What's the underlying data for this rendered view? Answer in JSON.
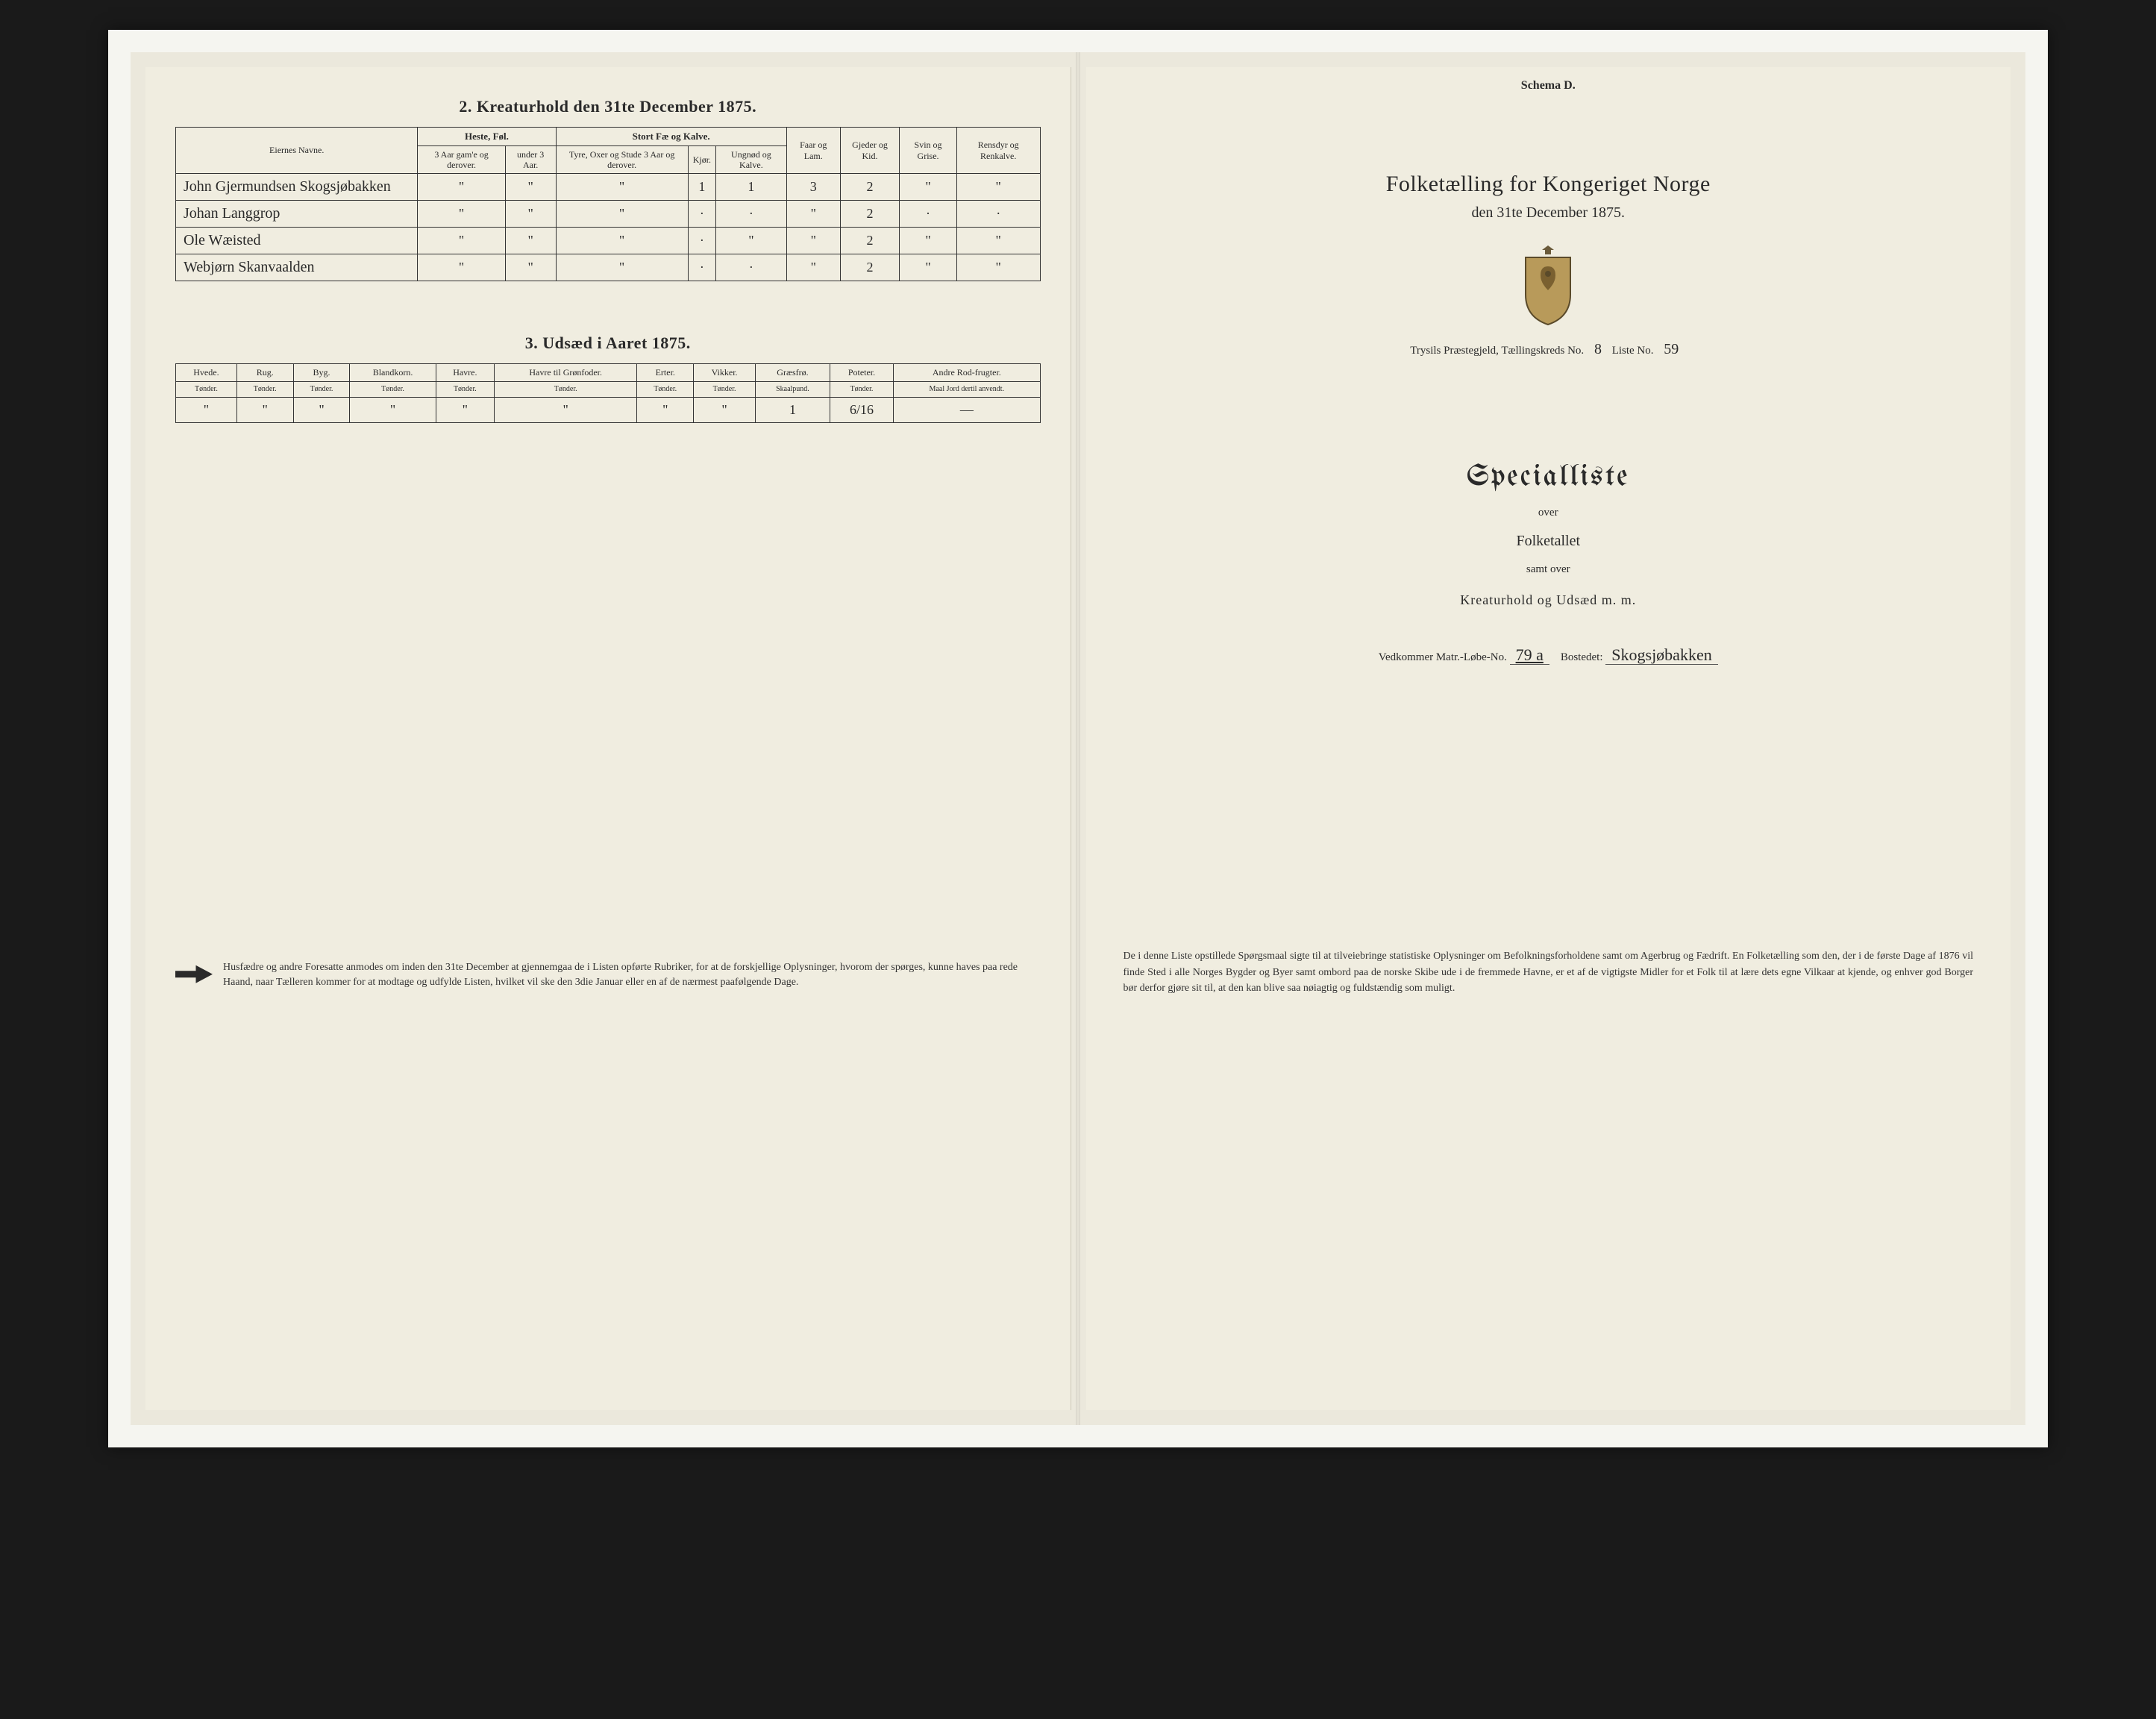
{
  "left": {
    "section2_title": "2. Kreaturhold den 31te December 1875.",
    "section3_title": "3. Udsæd i Aaret 1875.",
    "table2": {
      "head": {
        "names": "Eiernes Navne.",
        "g_horse": "Heste, Føl.",
        "g_cattle": "Stort Fæ og Kalve.",
        "g_sheep": "Faar og Lam.",
        "g_goat": "Gjeder og Kid.",
        "g_pig": "Svin og Grise.",
        "g_rein": "Rensdyr og Renkalve.",
        "h_horse1": "3 Aar gam'e og derover.",
        "h_horse2": "under 3 Aar.",
        "h_cattle1": "Tyre, Oxer og Stude 3 Aar og derover.",
        "h_cattle2": "Kjør.",
        "h_cattle3": "Ungnød og Kalve."
      },
      "rows": [
        {
          "name": "John Gjermundsen Skogsjøbakken",
          "c": [
            "\"",
            "\"",
            "\"",
            "1",
            "1",
            "3",
            "2",
            "\"",
            "\""
          ]
        },
        {
          "name": "Johan Langgrop",
          "c": [
            "\"",
            "\"",
            "\"",
            "·",
            "·",
            "\"",
            "2",
            "·",
            "·"
          ]
        },
        {
          "name": "Ole Wæisted",
          "c": [
            "\"",
            "\"",
            "\"",
            "·",
            "\"",
            "\"",
            "2",
            "\"",
            "\""
          ]
        },
        {
          "name": "Webjørn Skanvaalden",
          "c": [
            "\"",
            "\"",
            "\"",
            "·",
            "·",
            "\"",
            "2",
            "\"",
            "\""
          ]
        }
      ]
    },
    "table3": {
      "cols": [
        {
          "t": "Hvede.",
          "u": "Tønder."
        },
        {
          "t": "Rug.",
          "u": "Tønder."
        },
        {
          "t": "Byg.",
          "u": "Tønder."
        },
        {
          "t": "Blandkorn.",
          "u": "Tønder."
        },
        {
          "t": "Havre.",
          "u": "Tønder."
        },
        {
          "t": "Havre til Grønfoder.",
          "u": "Tønder."
        },
        {
          "t": "Erter.",
          "u": "Tønder."
        },
        {
          "t": "Vikker.",
          "u": "Tønder."
        },
        {
          "t": "Græsfrø.",
          "u": "Skaalpund."
        },
        {
          "t": "Poteter.",
          "u": "Tønder."
        },
        {
          "t": "Andre Rod-frugter.",
          "u": "Maal Jord dertil anvendt."
        }
      ],
      "row": [
        "\"",
        "\"",
        "\"",
        "\"",
        "\"",
        "\"",
        "\"",
        "\"",
        "1",
        "6/16",
        "—"
      ]
    },
    "footnote": "Husfædre og andre Foresatte anmodes om inden den 31te December at gjennemgaa de i Listen opførte Rubriker, for at de forskjellige Oplysninger, hvorom der spørges, kunne haves paa rede Haand, naar Tælleren kommer for at modtage og udfylde Listen, hvilket vil ske den 3die Januar eller en af de nærmest paafølgende Dage."
  },
  "right": {
    "schema": "Schema D.",
    "title": "Folketælling for Kongeriget Norge",
    "subtitle": "den 31te December 1875.",
    "meta_prefix": "Trysils Præstegjeld, Tællingskreds No.",
    "kreds_no": "8",
    "liste_label": "Liste No.",
    "liste_no": "59",
    "spec_title": "Specialliste",
    "spec_over": "over",
    "spec_folketallet": "Folketallet",
    "spec_samt": "samt over",
    "spec_kreatur": "Kreaturhold og Udsæd m. m.",
    "vedk_label": "Vedkommer Matr.-Løbe-No.",
    "matr_no": "79 a",
    "bostedet_label": "Bostedet:",
    "bostedet": "Skogsjøbakken",
    "paragraph": "De i denne Liste opstillede Spørgsmaal sigte til at tilveiebringe statistiske Oplysninger om Befolkningsforholdene samt om Agerbrug og Fædrift. En Folketælling som den, der i de første Dage af 1876 vil finde Sted i alle Norges Bygder og Byer samt ombord paa de norske Skibe ude i de fremmede Havne, er et af de vigtigste Midler for et Folk til at lære dets egne Vilkaar at kjende, og enhver god Borger bør derfor gjøre sit til, at den kan blive saa nøiagtig og fuldstændig som muligt."
  },
  "colors": {
    "paper": "#f0ede0",
    "ink": "#2a2a2a",
    "frame": "#f5f5f0"
  }
}
